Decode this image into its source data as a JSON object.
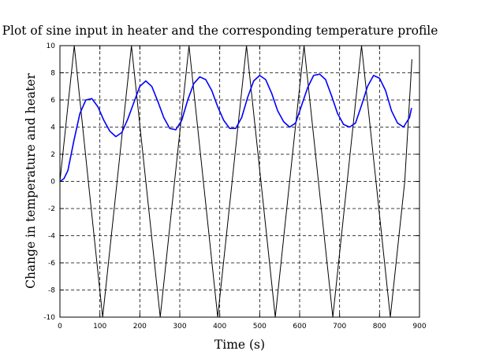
{
  "chart_data": {
    "type": "line",
    "title": "Plot of sine input in heater and the corresponding temperature profile",
    "xlabel": "Time (s)",
    "ylabel": "Change in temperature and heater",
    "xlim": [
      0,
      900
    ],
    "ylim": [
      -10,
      10
    ],
    "xticks": [
      0,
      100,
      200,
      300,
      400,
      500,
      600,
      700,
      800,
      900
    ],
    "yticks": [
      -10,
      -8,
      -6,
      -4,
      -2,
      0,
      2,
      4,
      6,
      8,
      10
    ],
    "grid": true,
    "colors": {
      "heater": "#000000",
      "temperature": "#0000ff"
    },
    "series": [
      {
        "x": [
          0,
          36,
          71,
          107,
          143,
          179,
          215,
          251,
          287,
          323,
          359,
          395,
          431,
          467,
          503,
          539,
          575,
          611,
          647,
          683,
          719,
          755,
          791,
          827,
          863,
          881
        ],
        "y": [
          0,
          10,
          0,
          -10,
          0,
          10,
          0,
          -10,
          0,
          10,
          0,
          -10,
          0,
          10,
          0,
          -10,
          0,
          10,
          0,
          -10,
          0,
          10,
          0,
          -10,
          0,
          9
        ]
      },
      {
        "x": [
          0,
          10,
          20,
          35,
          50,
          65,
          80,
          95,
          110,
          125,
          140,
          155,
          170,
          185,
          200,
          215,
          230,
          245,
          260,
          275,
          290,
          305,
          320,
          335,
          350,
          365,
          380,
          395,
          410,
          425,
          440,
          455,
          470,
          485,
          500,
          515,
          530,
          545,
          560,
          575,
          590,
          605,
          620,
          635,
          650,
          665,
          680,
          695,
          710,
          725,
          740,
          755,
          770,
          785,
          800,
          815,
          830,
          845,
          860,
          875,
          880
        ],
        "y": [
          0,
          0.2,
          0.8,
          3.0,
          5.0,
          6.0,
          6.1,
          5.5,
          4.5,
          3.7,
          3.3,
          3.6,
          4.6,
          5.8,
          7.0,
          7.4,
          7.0,
          5.9,
          4.7,
          3.9,
          3.8,
          4.5,
          6.0,
          7.2,
          7.7,
          7.5,
          6.7,
          5.5,
          4.5,
          3.9,
          3.9,
          4.7,
          6.2,
          7.4,
          7.8,
          7.5,
          6.5,
          5.2,
          4.4,
          4.0,
          4.3,
          5.6,
          6.9,
          7.8,
          7.9,
          7.5,
          6.3,
          5.0,
          4.2,
          4.0,
          4.3,
          5.6,
          7.0,
          7.8,
          7.6,
          6.7,
          5.2,
          4.3,
          4.0,
          4.7,
          5.4
        ]
      }
    ]
  }
}
